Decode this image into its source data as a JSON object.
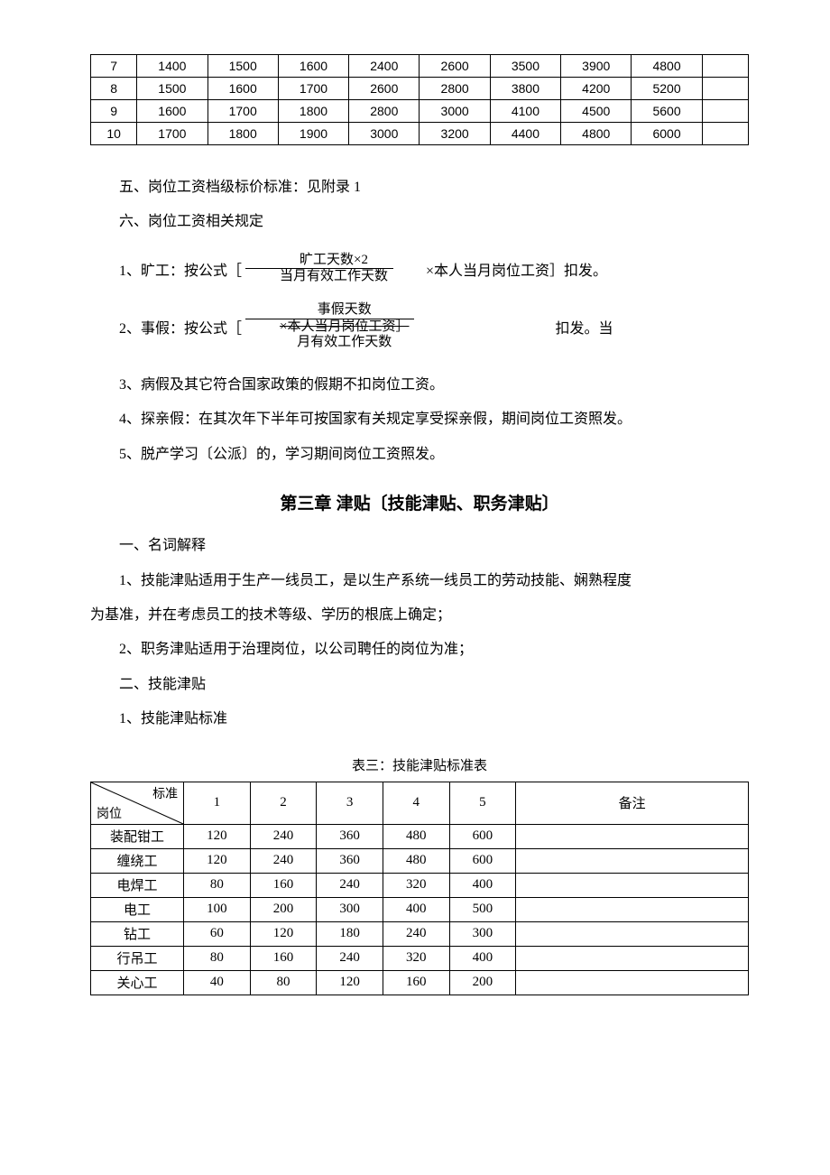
{
  "table_top": {
    "rows": [
      [
        "7",
        "1400",
        "1500",
        "1600",
        "2400",
        "2600",
        "3500",
        "3900",
        "4800",
        ""
      ],
      [
        "8",
        "1500",
        "1600",
        "1700",
        "2600",
        "2800",
        "3800",
        "4200",
        "5200",
        ""
      ],
      [
        "9",
        "1600",
        "1700",
        "1800",
        "2800",
        "3000",
        "4100",
        "4500",
        "5600",
        ""
      ],
      [
        "10",
        "1700",
        "1800",
        "1900",
        "3000",
        "3200",
        "4400",
        "4800",
        "6000",
        ""
      ]
    ]
  },
  "section5": "五、岗位工资档级标价标准：见附录 1",
  "section6": "六、岗位工资相关规定",
  "rule1_prefix": "1、旷工：按公式［",
  "rule1_frac_num": "旷工天数×2",
  "rule1_frac_den": "当月有效工作天数",
  "rule1_suffix": " ×本人当月岗位工资］扣发。",
  "rule2_prefix": "2、事假：按公式［",
  "rule2_frac_num": "事假天数",
  "rule2_frac_den": "×本人当月岗位工资］",
  "rule2_frac_den2": "月有效工作天数",
  "rule2_suffix": "扣发。当",
  "rule3": "3、病假及其它符合国家政策的假期不扣岗位工资。",
  "rule4": "4、探亲假：在其次年下半年可按国家有关规定享受探亲假，期间岗位工资照发。",
  "rule5": "5、脱产学习〔公派〕的，学习期间岗位工资照发。",
  "chapter3": "第三章  津贴〔技能津贴、职务津贴〕",
  "sec_a": "一、名词解释",
  "sec_a1_l1": "1、技能津贴适用于生产一线员工，是以生产系统一线员工的劳动技能、娴熟程度",
  "sec_a1_l2": "为基准，并在考虑员工的技术等级、学历的根底上确定；",
  "sec_a2": "2、职务津贴适用于治理岗位，以公司聘任的岗位为准；",
  "sec_b": "二、技能津贴",
  "sec_b1": "1、技能津贴标准",
  "tbl3_caption": "表三：技能津贴标准表",
  "tbl_skill": {
    "head_diag_top": "标准",
    "head_diag_bot": "岗位",
    "cols": [
      "1",
      "2",
      "3",
      "4",
      "5",
      "备注"
    ],
    "rows": [
      [
        "装配钳工",
        "120",
        "240",
        "360",
        "480",
        "600",
        ""
      ],
      [
        "缠绕工",
        "120",
        "240",
        "360",
        "480",
        "600",
        ""
      ],
      [
        "电焊工",
        "80",
        "160",
        "240",
        "320",
        "400",
        ""
      ],
      [
        "电工",
        "100",
        "200",
        "300",
        "400",
        "500",
        ""
      ],
      [
        "钻工",
        "60",
        "120",
        "180",
        "240",
        "300",
        ""
      ],
      [
        "行吊工",
        "80",
        "160",
        "240",
        "320",
        "400",
        ""
      ],
      [
        "关心工",
        "40",
        "80",
        "120",
        "160",
        "200",
        ""
      ]
    ]
  },
  "colors": {
    "text": "#000000",
    "bg": "#ffffff",
    "border": "#000000"
  }
}
